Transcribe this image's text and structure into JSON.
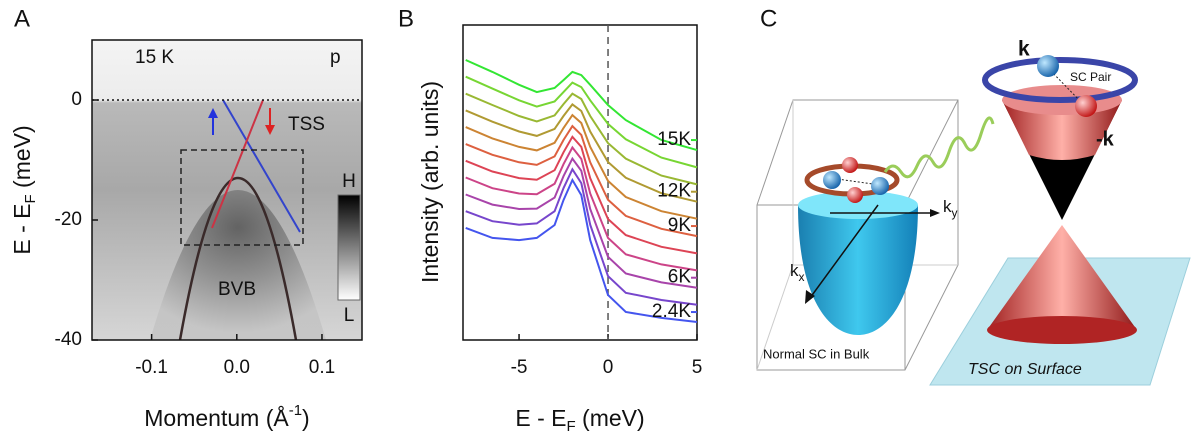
{
  "panel_labels": [
    "A",
    "B",
    "C"
  ],
  "chart_data": [
    {
      "type": "image",
      "xlim": [
        -0.17,
        0.147
      ],
      "ylim": [
        -40,
        10
      ],
      "xticks": [
        -0.1,
        {
          "value": 0,
          "label": "0.0"
        },
        0.1
      ],
      "yticks": [
        0,
        -20,
        -40
      ],
      "reference_line": 0,
      "xlabel": {
        "main": "Momentum (Å",
        "sup": "-1",
        "end": ")"
      },
      "ylabel": {
        "main": "E - E",
        "sub": "F",
        "unit": " (meV)"
      },
      "annotations": {
        "temperature": "15 K",
        "polarization": "p",
        "tss": "TSS",
        "bvb": "BVB"
      },
      "colorbar": {
        "high": "H",
        "low": "L"
      }
    },
    {
      "type": "line",
      "x": [
        -8,
        -6.5,
        -5,
        -4,
        -3,
        -2.5,
        -2,
        -1.5,
        -1,
        0,
        1,
        3,
        5
      ],
      "xlim": [
        -8.15,
        5
      ],
      "ylim": [
        0,
        100
      ],
      "xticks": [
        -5,
        0,
        5
      ],
      "reference_line": 0,
      "xlabel": {
        "main": "E - E",
        "sub": "F",
        "unit": " (meV)"
      },
      "ylabel": "Intensity (arb. units)",
      "series": [
        {
          "name": "15K",
          "color": "#33e633",
          "values": [
            88.9,
            85.1,
            81.0,
            78.7,
            80.0,
            82.5,
            85.1,
            84.1,
            81.0,
            74.6,
            69.8,
            63.5,
            60.3
          ]
        },
        {
          "name": null,
          "color": "#77d633",
          "values": [
            83.6,
            79.8,
            76.1,
            74.1,
            75.7,
            78.7,
            81.7,
            80.3,
            76.1,
            68.6,
            63.7,
            57.9,
            54.8
          ]
        },
        {
          "name": null,
          "color": "#99b833",
          "values": [
            78.2,
            74.6,
            71.1,
            69.4,
            71.3,
            74.9,
            78.2,
            76.5,
            71.1,
            62.5,
            57.6,
            52.2,
            49.4
          ]
        },
        {
          "name": "12K",
          "color": "#b09a33",
          "values": [
            72.9,
            69.3,
            66.2,
            64.8,
            67.0,
            71.1,
            74.8,
            72.7,
            66.2,
            56.5,
            51.5,
            46.6,
            43.9
          ]
        },
        {
          "name": null,
          "color": "#cc8433",
          "values": [
            67.6,
            64.0,
            61.3,
            60.2,
            62.6,
            67.3,
            71.4,
            68.9,
            61.3,
            50.5,
            45.4,
            40.9,
            38.5
          ]
        },
        {
          "name": "9K",
          "color": "#dd6040",
          "values": [
            62.2,
            58.8,
            56.4,
            55.6,
            58.3,
            63.5,
            67.9,
            65.1,
            56.4,
            44.5,
            39.4,
            35.3,
            33.0
          ]
        },
        {
          "name": null,
          "color": "#dd4455",
          "values": [
            56.9,
            53.5,
            51.4,
            50.9,
            53.9,
            59.6,
            64.5,
            61.3,
            51.4,
            38.4,
            33.3,
            29.6,
            27.5
          ]
        },
        {
          "name": null,
          "color": "#cc4488",
          "values": [
            51.6,
            48.2,
            46.5,
            46.3,
            49.6,
            55.8,
            61.1,
            57.5,
            46.5,
            32.4,
            27.2,
            24.0,
            22.1
          ]
        },
        {
          "name": "6K",
          "color": "#a844aa",
          "values": [
            46.2,
            43.0,
            41.6,
            41.7,
            45.2,
            52.0,
            57.6,
            53.7,
            41.6,
            26.4,
            21.1,
            18.3,
            16.6
          ]
        },
        {
          "name": null,
          "color": "#7746cc",
          "values": [
            40.9,
            37.7,
            36.6,
            37.0,
            40.9,
            48.2,
            54.2,
            49.8,
            36.6,
            20.3,
            15.0,
            12.7,
            11.2
          ]
        },
        {
          "name": "2.4K",
          "color": "#4455ee",
          "values": [
            35.6,
            32.4,
            31.7,
            32.4,
            36.5,
            44.4,
            50.8,
            46.0,
            31.7,
            14.3,
            8.9,
            7.0,
            5.7
          ]
        }
      ]
    }
  ],
  "diagram": {
    "k": "k",
    "sc_pair": "SC Pair",
    "minus_k": "-k",
    "ky": {
      "main": "k",
      "sub": "y"
    },
    "kx": {
      "main": "k",
      "sub": "x"
    },
    "bulk": "Normal SC in Bulk",
    "surface": "TSC on Surface"
  }
}
